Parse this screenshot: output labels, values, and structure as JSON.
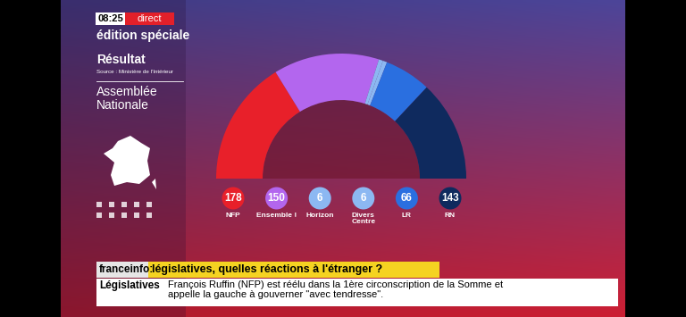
{
  "chart_data": {
    "type": "hemicycle",
    "title": "Résultat",
    "subtitle": "Assemblée\nNationale",
    "source": "Source : Ministère de l'Intérieur",
    "categories": [
      "NFP",
      "Ensemble !",
      "Horizon",
      "Divers\nCentre",
      "LR",
      "RN"
    ],
    "values": [
      178,
      150,
      6,
      6,
      66,
      143
    ],
    "colors": [
      "#e8202a",
      "#b366ee",
      "#8cb8f2",
      "#8cb8f2",
      "#2a6fe0",
      "#0f2a5e"
    ],
    "data_labels": true
  },
  "screen": {
    "time": "08:25",
    "live": "direct",
    "program": "édition spéciale",
    "ticker": {
      "channel": "franceinfo:",
      "headline": "législatives, quelles réactions à l'étranger ?",
      "section": "Législatives",
      "text": "François Ruffin (NFP) est réélu dans la 1ère circonscription de la Somme et\nappelle la gauche à gouverner \"avec tendresse\"."
    }
  }
}
